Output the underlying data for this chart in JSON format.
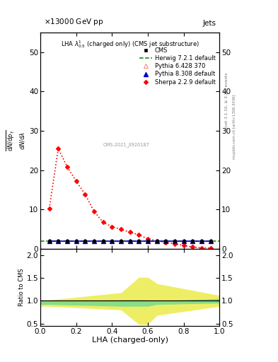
{
  "xlim": [
    0.0,
    1.0
  ],
  "ylim_main": [
    0,
    55
  ],
  "ylim_ratio": [
    0.45,
    2.15
  ],
  "sherpa_x": [
    0.05,
    0.1,
    0.15,
    0.2,
    0.25,
    0.3,
    0.35,
    0.4,
    0.45,
    0.5,
    0.55,
    0.6,
    0.65,
    0.7,
    0.75,
    0.8,
    0.85,
    0.9,
    0.95
  ],
  "sherpa_y": [
    10.2,
    25.5,
    20.8,
    17.2,
    13.8,
    9.5,
    6.7,
    5.6,
    4.9,
    4.2,
    3.5,
    2.5,
    2.0,
    1.6,
    1.2,
    0.8,
    0.4,
    0.2,
    0.15
  ],
  "cms_x": [
    0.05,
    0.1,
    0.15,
    0.2,
    0.25,
    0.3,
    0.35,
    0.4,
    0.45,
    0.5,
    0.55,
    0.6,
    0.65,
    0.7,
    0.75,
    0.8,
    0.85,
    0.9,
    0.95
  ],
  "cms_y": [
    2.0,
    2.0,
    2.0,
    2.0,
    2.0,
    2.0,
    2.0,
    2.0,
    2.0,
    2.0,
    2.0,
    2.0,
    2.0,
    2.0,
    2.0,
    2.0,
    2.0,
    2.0,
    2.0
  ],
  "herwig_x": [
    0.025,
    0.075,
    0.125,
    0.175,
    0.225,
    0.275,
    0.325,
    0.375,
    0.425,
    0.475,
    0.525,
    0.575,
    0.625,
    0.675,
    0.725,
    0.775,
    0.825,
    0.875,
    0.925,
    0.975
  ],
  "herwig_y": [
    2.0,
    2.0,
    2.0,
    2.0,
    2.0,
    2.0,
    2.0,
    2.0,
    2.0,
    2.0,
    2.0,
    2.0,
    2.0,
    2.0,
    2.0,
    2.0,
    2.0,
    2.0,
    2.0,
    2.0
  ],
  "pythia6_x": [
    0.05,
    0.1,
    0.15,
    0.2,
    0.25,
    0.3,
    0.35,
    0.4,
    0.45,
    0.5,
    0.55,
    0.6,
    0.65,
    0.7,
    0.75,
    0.8,
    0.85,
    0.9,
    0.95
  ],
  "pythia6_y": [
    2.0,
    2.0,
    2.0,
    2.0,
    2.0,
    2.0,
    2.0,
    2.0,
    2.0,
    2.0,
    2.0,
    2.0,
    2.0,
    2.0,
    2.0,
    2.0,
    2.0,
    2.0,
    2.0
  ],
  "pythia8_x": [
    0.05,
    0.1,
    0.15,
    0.2,
    0.25,
    0.3,
    0.35,
    0.4,
    0.45,
    0.5,
    0.55,
    0.6,
    0.65,
    0.7,
    0.75,
    0.8,
    0.85,
    0.9,
    0.95
  ],
  "pythia8_y": [
    2.0,
    2.0,
    2.0,
    2.0,
    2.0,
    2.0,
    2.0,
    2.0,
    2.0,
    2.0,
    2.0,
    2.0,
    2.0,
    2.0,
    2.0,
    2.0,
    2.0,
    2.0,
    2.0
  ],
  "yellow_x": [
    0.0,
    0.05,
    0.45,
    0.55,
    0.6,
    0.65,
    1.0
  ],
  "yellow_lo": [
    0.88,
    0.88,
    0.8,
    0.48,
    0.48,
    0.68,
    0.88
  ],
  "yellow_hi": [
    1.02,
    1.02,
    1.18,
    1.52,
    1.52,
    1.38,
    1.12
  ],
  "green_x": [
    0.0,
    0.05,
    0.45,
    0.55,
    0.6,
    0.65,
    1.0
  ],
  "green_lo": [
    0.92,
    0.92,
    0.88,
    0.88,
    0.88,
    0.92,
    0.95
  ],
  "green_hi": [
    1.0,
    1.0,
    1.02,
    1.02,
    1.02,
    1.0,
    1.05
  ],
  "color_cms": "#000000",
  "color_herwig": "#008800",
  "color_pythia6": "#ff8888",
  "color_pythia8": "#0000cc",
  "color_sherpa": "#ff0000",
  "color_green_band": "#88dd88",
  "color_yellow_band": "#eeee66",
  "xlabel": "LHA (charged-only)",
  "ylabel_ratio": "Ratio to CMS",
  "watermark": "CMS-2021_JI920187",
  "yticks_main": [
    0,
    10,
    20,
    30,
    40,
    50
  ],
  "yticks_ratio": [
    0.5,
    1.0,
    1.5,
    2.0
  ]
}
